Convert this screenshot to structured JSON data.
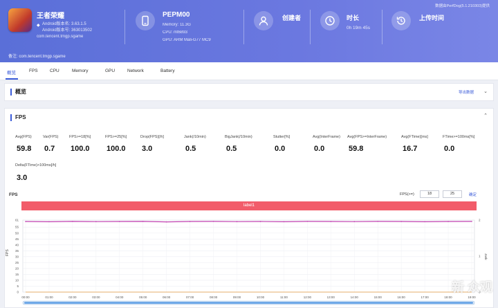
{
  "header": {
    "app_name": "王者荣耀",
    "android_version": "Android版本名: 3.63.1.5",
    "android_code": "Android版本号: 363013502",
    "package": "com.tencent.tmgp.sgame",
    "device_name": "PEPM00",
    "memory": "Memory: 11.3G",
    "cpu": "CPU: mt6893",
    "gpu": "GPU: ARM Mali-G77 MC9",
    "creator_label": "创建者",
    "creator_value": "",
    "duration_label": "时长",
    "duration_value": "0h 19m 45s",
    "upload_label": "上传时间",
    "upload_value": "",
    "top_right": "数据由PerfDog(5.1.210303)提供",
    "note": "备注: com.tencent.tmgp.sgame"
  },
  "tabs": [
    "概览",
    "FPS",
    "CPU",
    "Memory",
    "GPU",
    "Network",
    "Battery"
  ],
  "overview": {
    "title": "概览",
    "export": "导出数据"
  },
  "fps_section": {
    "title": "FPS",
    "metrics": [
      {
        "label": "Avg(FPS)",
        "value": "59.8"
      },
      {
        "label": "Var(FPS)",
        "value": "0.7"
      },
      {
        "label": "FPS>=18[%]",
        "value": "100.0"
      },
      {
        "label": "FPS>=25[%]",
        "value": "100.0"
      },
      {
        "label": "Drop(FPS)[/h]",
        "value": "3.0"
      },
      {
        "label": "Jank(/10min)",
        "value": "0.5"
      },
      {
        "label": "BigJank(/10min)",
        "value": "0.5"
      },
      {
        "label": "Stutter[%]",
        "value": "0.0"
      },
      {
        "label": "Avg(InterFrame)",
        "value": "0.0"
      },
      {
        "label": "Avg(FPS>=InterFrame)",
        "value": "59.8"
      },
      {
        "label": "Avg(FTime)[ms]",
        "value": "16.7"
      },
      {
        "label": "FTime>=100ms[%]",
        "value": "0.0"
      },
      {
        "label": "Delta(FTime)>100ms[/h]",
        "value": "3.0"
      }
    ]
  },
  "chart": {
    "title": "FPS",
    "range_label": "FPS(>=)",
    "range_low": "18",
    "range_high": "25",
    "confirm": "确定",
    "label_bar": "label1",
    "watermark": "新 众观"
  },
  "chart_data": {
    "type": "line",
    "ylabel": "FPS",
    "y2label": "Jank",
    "ylim": [
      0,
      61
    ],
    "yticks": [
      0,
      5,
      10,
      15,
      20,
      25,
      30,
      35,
      40,
      45,
      50,
      55,
      61
    ],
    "y2ticks": [
      0,
      1,
      2
    ],
    "x": [
      "00:00",
      "01:00",
      "02:00",
      "03:00",
      "04:00",
      "05:00",
      "06:00",
      "07:00",
      "08:00",
      "09:00",
      "10:00",
      "11:00",
      "12:00",
      "13:00",
      "14:00",
      "15:00",
      "16:00",
      "17:00",
      "18:00",
      "19:00"
    ],
    "series": [
      {
        "name": "FPS",
        "color": "#c040b0",
        "values": [
          59.8,
          59.6,
          59.9,
          59.7,
          59.8,
          59.9,
          59.5,
          59.8,
          59.9,
          59.7,
          59.8,
          59.6,
          59.9,
          59.8,
          59.7,
          59.9,
          59.8,
          59.6,
          59.8,
          59.9
        ]
      },
      {
        "name": "Jank",
        "color": "#e69a3c",
        "values": [
          0,
          0,
          0,
          0,
          0,
          0,
          0,
          0,
          0,
          0,
          0,
          0,
          0,
          0,
          0,
          0,
          0,
          0,
          0,
          0
        ]
      }
    ],
    "colors": {
      "line": "#c040b0",
      "baseline": "#e69a3c",
      "accent": "#3a5bd9",
      "label_bar": "#f25c6a"
    }
  }
}
